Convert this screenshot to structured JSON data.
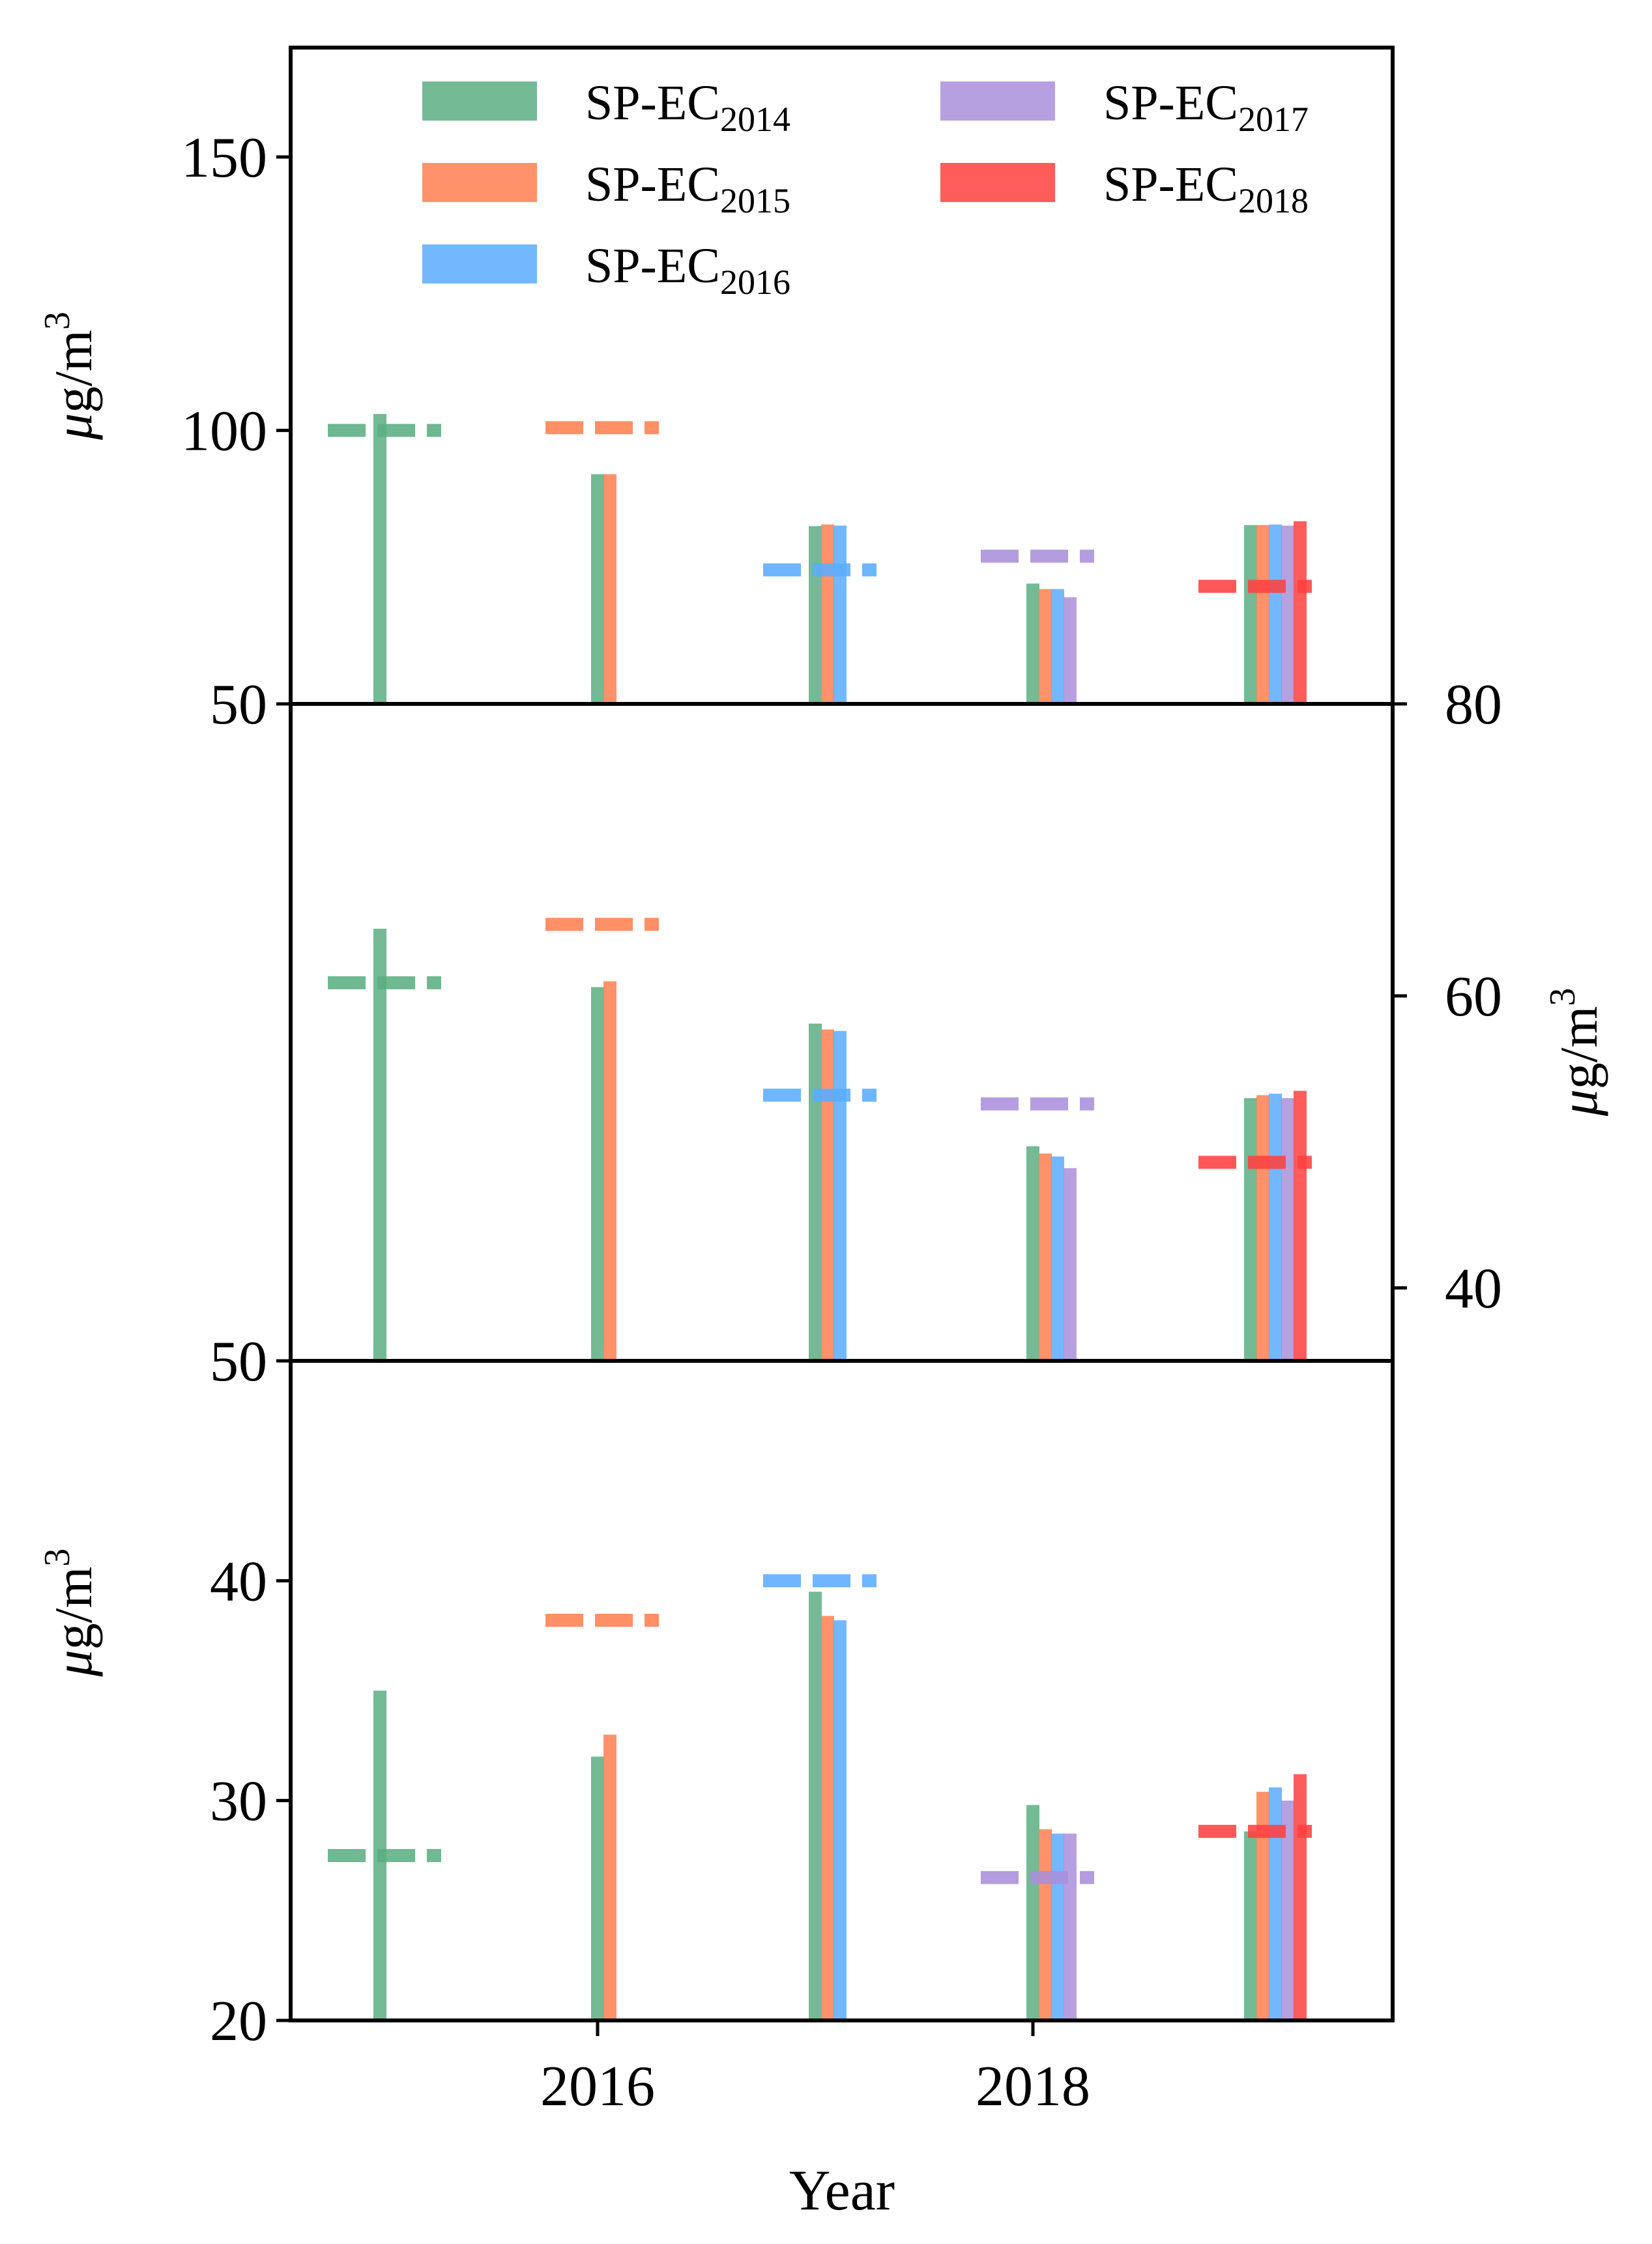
{
  "figure": {
    "xlabel": "Year",
    "x_ticks": [
      "2016",
      "2018"
    ],
    "ylabel_text": "μg/m",
    "ylabel_sup": "3",
    "subscript_prefix": "SP-EC"
  },
  "legend": [
    {
      "prefix": "SP-EC",
      "sub": "2014",
      "color": "#5BAE82"
    },
    {
      "prefix": "SP-EC",
      "sub": "2015",
      "color": "#FF7F50"
    },
    {
      "prefix": "SP-EC",
      "sub": "2016",
      "color": "#5AACFF"
    },
    {
      "prefix": "SP-EC",
      "sub": "2017",
      "color": "#A98FDB"
    },
    {
      "prefix": "SP-EC",
      "sub": "2018",
      "color": "#FF4040"
    }
  ],
  "chart_data": [
    {
      "type": "bar",
      "panel": "top",
      "ylim": [
        50,
        170
      ],
      "y_ticks": [
        "50",
        "100",
        "150"
      ],
      "y_side": "left",
      "ylabel": "μg/m3",
      "groups": [
        {
          "x": 2015,
          "bars": [
            {
              "series": "SP-EC2014",
              "value": 103
            }
          ],
          "observed": {
            "series": "SP-EC2014",
            "value": 100
          }
        },
        {
          "x": 2016,
          "bars": [
            {
              "series": "SP-EC2014",
              "value": 92
            },
            {
              "series": "SP-EC2015",
              "value": 92
            }
          ],
          "observed": {
            "series": "SP-EC2015",
            "value": 100.5
          }
        },
        {
          "x": 2017,
          "bars": [
            {
              "series": "SP-EC2014",
              "value": 82.5
            },
            {
              "series": "SP-EC2015",
              "value": 82.8
            },
            {
              "series": "SP-EC2016",
              "value": 82.6
            }
          ],
          "observed": {
            "series": "SP-EC2016",
            "value": 74.5
          }
        },
        {
          "x": 2018,
          "bars": [
            {
              "series": "SP-EC2014",
              "value": 72
            },
            {
              "series": "SP-EC2015",
              "value": 71
            },
            {
              "series": "SP-EC2016",
              "value": 71
            },
            {
              "series": "SP-EC2017",
              "value": 69.5
            }
          ],
          "observed": {
            "series": "SP-EC2017",
            "value": 77
          }
        },
        {
          "x": 2019,
          "bars": [
            {
              "series": "SP-EC2014",
              "value": 82.7
            },
            {
              "series": "SP-EC2015",
              "value": 82.7
            },
            {
              "series": "SP-EC2016",
              "value": 82.8
            },
            {
              "series": "SP-EC2017",
              "value": 82.6
            },
            {
              "series": "SP-EC2018",
              "value": 83.4
            }
          ],
          "observed": {
            "series": "SP-EC2018",
            "value": 71.5
          }
        }
      ]
    },
    {
      "type": "bar",
      "panel": "middle",
      "ylim": [
        35,
        80
      ],
      "y_ticks": [
        "40",
        "60",
        "80"
      ],
      "y_side": "right",
      "left_bottom_tick": "50",
      "ylabel": "μg/m3",
      "groups": [
        {
          "x": 2015,
          "bars": [
            {
              "series": "SP-EC2014",
              "value": 64.6
            }
          ],
          "observed": {
            "series": "SP-EC2014",
            "value": 60.9
          }
        },
        {
          "x": 2016,
          "bars": [
            {
              "series": "SP-EC2014",
              "value": 60.6
            },
            {
              "series": "SP-EC2015",
              "value": 61.0
            }
          ],
          "observed": {
            "series": "SP-EC2015",
            "value": 64.9
          }
        },
        {
          "x": 2017,
          "bars": [
            {
              "series": "SP-EC2014",
              "value": 58.1
            },
            {
              "series": "SP-EC2015",
              "value": 57.7
            },
            {
              "series": "SP-EC2016",
              "value": 57.6
            }
          ],
          "observed": {
            "series": "SP-EC2016",
            "value": 53.2
          }
        },
        {
          "x": 2018,
          "bars": [
            {
              "series": "SP-EC2014",
              "value": 49.7
            },
            {
              "series": "SP-EC2015",
              "value": 49.2
            },
            {
              "series": "SP-EC2016",
              "value": 49.0
            },
            {
              "series": "SP-EC2017",
              "value": 48.2
            }
          ],
          "observed": {
            "series": "SP-EC2017",
            "value": 52.6
          }
        },
        {
          "x": 2019,
          "bars": [
            {
              "series": "SP-EC2014",
              "value": 53.0
            },
            {
              "series": "SP-EC2015",
              "value": 53.2
            },
            {
              "series": "SP-EC2016",
              "value": 53.3
            },
            {
              "series": "SP-EC2017",
              "value": 53.0
            },
            {
              "series": "SP-EC2018",
              "value": 53.5
            }
          ],
          "observed": {
            "series": "SP-EC2018",
            "value": 48.6
          }
        }
      ]
    },
    {
      "type": "bar",
      "panel": "bottom",
      "ylim": [
        20,
        50
      ],
      "y_ticks": [
        "20",
        "30",
        "40",
        "50"
      ],
      "y_side": "left",
      "ylabel": "μg/m3",
      "groups": [
        {
          "x": 2015,
          "bars": [
            {
              "series": "SP-EC2014",
              "value": 35
            }
          ],
          "observed": {
            "series": "SP-EC2014",
            "value": 27.5
          }
        },
        {
          "x": 2016,
          "bars": [
            {
              "series": "SP-EC2014",
              "value": 32
            },
            {
              "series": "SP-EC2015",
              "value": 33
            }
          ],
          "observed": {
            "series": "SP-EC2015",
            "value": 38.2
          }
        },
        {
          "x": 2017,
          "bars": [
            {
              "series": "SP-EC2014",
              "value": 39.5
            },
            {
              "series": "SP-EC2015",
              "value": 38.4
            },
            {
              "series": "SP-EC2016",
              "value": 38.2
            }
          ],
          "observed": {
            "series": "SP-EC2016",
            "value": 40
          }
        },
        {
          "x": 2018,
          "bars": [
            {
              "series": "SP-EC2014",
              "value": 29.8
            },
            {
              "series": "SP-EC2015",
              "value": 28.7
            },
            {
              "series": "SP-EC2016",
              "value": 28.5
            },
            {
              "series": "SP-EC2017",
              "value": 28.5
            }
          ],
          "observed": {
            "series": "SP-EC2017",
            "value": 26.5
          }
        },
        {
          "x": 2019,
          "bars": [
            {
              "series": "SP-EC2014",
              "value": 28.6
            },
            {
              "series": "SP-EC2015",
              "value": 30.4
            },
            {
              "series": "SP-EC2016",
              "value": 30.6
            },
            {
              "series": "SP-EC2017",
              "value": 30
            },
            {
              "series": "SP-EC2018",
              "value": 31.2
            }
          ],
          "observed": {
            "series": "SP-EC2018",
            "value": 28.6
          }
        }
      ]
    }
  ]
}
